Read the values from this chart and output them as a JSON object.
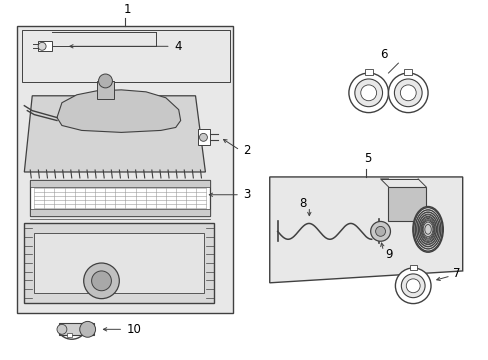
{
  "bg_color": "#ffffff",
  "diagram_bg": "#e8e8e8",
  "line_color": "#404040",
  "text_color": "#000000",
  "label_fontsize": 8.5
}
